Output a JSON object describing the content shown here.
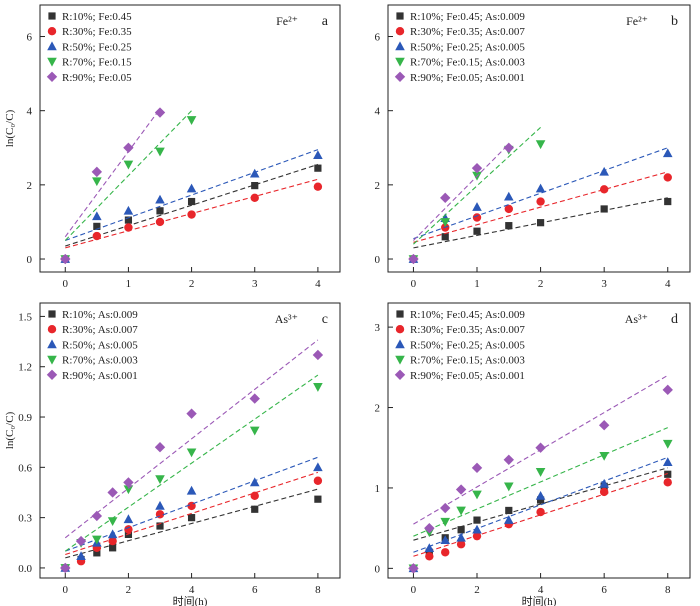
{
  "panels": [
    {
      "panel_label": "a",
      "ion_label": "Fe²⁺",
      "y_label": "ln(C₀/C)",
      "x_label": "",
      "chart_data": {
        "type": "scatter",
        "x_ticks": [
          0,
          1,
          2,
          3,
          4
        ],
        "y_ticks": [
          0,
          2,
          4,
          6
        ],
        "xlim": [
          -0.4,
          4.35
        ],
        "ylim": [
          -0.35,
          6.85
        ],
        "series": [
          {
            "name": "R:10%; Fe:0.45",
            "color": "#333333",
            "marker": "square",
            "x": [
              0,
              0.5,
              1,
              1.5,
              2,
              3,
              4
            ],
            "y": [
              0,
              0.88,
              1.05,
              1.3,
              1.55,
              1.98,
              2.45
            ],
            "fit": {
              "x0": 0,
              "y0": 0.35,
              "x1": 4,
              "y1": 2.55
            }
          },
          {
            "name": "R:30%; Fe:0.35",
            "color": "#e8262b",
            "marker": "circle",
            "x": [
              0,
              0.5,
              1,
              1.5,
              2,
              3,
              4
            ],
            "y": [
              0,
              0.62,
              0.85,
              1.0,
              1.2,
              1.65,
              1.95
            ],
            "fit": {
              "x0": 0,
              "y0": 0.3,
              "x1": 4,
              "y1": 2.15
            }
          },
          {
            "name": "R:50%; Fe:0.25",
            "color": "#2b58b8",
            "marker": "triangle-up",
            "x": [
              0,
              0.5,
              1,
              1.5,
              2,
              3,
              4
            ],
            "y": [
              0,
              1.15,
              1.3,
              1.6,
              1.9,
              2.3,
              2.8
            ],
            "fit": {
              "x0": 0,
              "y0": 0.5,
              "x1": 4,
              "y1": 2.95
            }
          },
          {
            "name": "R:70%; Fe:0.15",
            "color": "#36b54a",
            "marker": "triangle-down",
            "x": [
              0,
              0.5,
              1,
              1.5,
              2
            ],
            "y": [
              0,
              2.1,
              2.55,
              2.9,
              3.75
            ],
            "fit": {
              "x0": 0,
              "y0": 0.5,
              "x1": 2,
              "y1": 4.0
            }
          },
          {
            "name": "R:90%; Fe:0.05",
            "color": "#9b59b6",
            "marker": "diamond",
            "x": [
              0,
              0.5,
              1,
              1.5
            ],
            "y": [
              0,
              2.35,
              3.0,
              3.95
            ],
            "fit": {
              "x0": 0,
              "y0": 0.6,
              "x1": 1.5,
              "y1": 4.05
            }
          }
        ]
      }
    },
    {
      "panel_label": "b",
      "ion_label": "Fe²⁺",
      "y_label": "",
      "x_label": "",
      "chart_data": {
        "type": "scatter",
        "x_ticks": [
          0,
          1,
          2,
          3,
          4
        ],
        "y_ticks": [
          0,
          2,
          4,
          6
        ],
        "xlim": [
          -0.4,
          4.35
        ],
        "ylim": [
          -0.35,
          6.85
        ],
        "series": [
          {
            "name": "R:10%; Fe:0.45; As:0.009",
            "color": "#333333",
            "marker": "square",
            "x": [
              0,
              0.5,
              1,
              1.5,
              2,
              3,
              4
            ],
            "y": [
              0,
              0.6,
              0.75,
              0.9,
              0.98,
              1.35,
              1.55
            ],
            "fit": {
              "x0": 0,
              "y0": 0.3,
              "x1": 4,
              "y1": 1.65
            }
          },
          {
            "name": "R:30%; Fe:0.35; As:0.007",
            "color": "#e8262b",
            "marker": "circle",
            "x": [
              0,
              0.5,
              1,
              1.5,
              2,
              3,
              4
            ],
            "y": [
              0,
              0.85,
              1.12,
              1.35,
              1.55,
              1.88,
              2.2
            ],
            "fit": {
              "x0": 0,
              "y0": 0.45,
              "x1": 4,
              "y1": 2.35
            }
          },
          {
            "name": "R:50%; Fe:0.25; As:0.005",
            "color": "#2b58b8",
            "marker": "triangle-up",
            "x": [
              0,
              0.5,
              1,
              1.5,
              2,
              3,
              4
            ],
            "y": [
              0,
              1.1,
              1.4,
              1.68,
              1.9,
              2.35,
              2.85
            ],
            "fit": {
              "x0": 0,
              "y0": 0.55,
              "x1": 4,
              "y1": 3.0
            }
          },
          {
            "name": "R:70%; Fe:0.15; As:0.003",
            "color": "#36b54a",
            "marker": "triangle-down",
            "x": [
              0,
              0.5,
              1,
              1.5,
              2
            ],
            "y": [
              0,
              1.0,
              2.25,
              2.95,
              3.1
            ],
            "fit": {
              "x0": 0,
              "y0": 0.4,
              "x1": 2,
              "y1": 3.55
            }
          },
          {
            "name": "R:90%; Fe:0.05; As:0.001",
            "color": "#9b59b6",
            "marker": "diamond",
            "x": [
              0,
              0.5,
              1,
              1.5
            ],
            "y": [
              0,
              1.65,
              2.45,
              3.0
            ],
            "fit": {
              "x0": 0,
              "y0": 0.5,
              "x1": 1.5,
              "y1": 3.1
            }
          }
        ]
      }
    },
    {
      "panel_label": "c",
      "ion_label": "As³⁺",
      "y_label": "ln(C₀/C)",
      "x_label": "时间(h)",
      "chart_data": {
        "type": "scatter",
        "x_ticks": [
          0,
          2,
          4,
          6,
          8
        ],
        "y_ticks": [
          "0.0",
          "0.3",
          "0.6",
          "0.9",
          "1.2",
          "1.5"
        ],
        "xlim": [
          -0.8,
          8.7
        ],
        "ylim": [
          -0.06,
          1.58
        ],
        "series": [
          {
            "name": "R:10%; As:0.009",
            "color": "#333333",
            "marker": "square",
            "x": [
              0,
              0.5,
              1,
              1.5,
              2,
              3,
              4,
              6,
              8
            ],
            "y": [
              0,
              0.05,
              0.09,
              0.12,
              0.2,
              0.25,
              0.3,
              0.35,
              0.41
            ],
            "fit": {
              "x0": 0,
              "y0": 0.06,
              "x1": 8,
              "y1": 0.47
            }
          },
          {
            "name": "R:30%; As:0.007",
            "color": "#e8262b",
            "marker": "circle",
            "x": [
              0,
              0.5,
              1,
              1.5,
              2,
              3,
              4,
              6,
              8
            ],
            "y": [
              0,
              0.04,
              0.12,
              0.16,
              0.23,
              0.32,
              0.37,
              0.43,
              0.52
            ],
            "fit": {
              "x0": 0,
              "y0": 0.08,
              "x1": 8,
              "y1": 0.57
            }
          },
          {
            "name": "R:50%; As:0.005",
            "color": "#2b58b8",
            "marker": "triangle-up",
            "x": [
              0,
              0.5,
              1,
              1.5,
              2,
              3,
              4,
              6,
              8
            ],
            "y": [
              0,
              0.07,
              0.15,
              0.2,
              0.29,
              0.37,
              0.46,
              0.51,
              0.6
            ],
            "fit": {
              "x0": 0,
              "y0": 0.1,
              "x1": 8,
              "y1": 0.66
            }
          },
          {
            "name": "R:70%; As:0.003",
            "color": "#36b54a",
            "marker": "triangle-down",
            "x": [
              0,
              0.5,
              1,
              1.5,
              2,
              3,
              4,
              6,
              8
            ],
            "y": [
              0,
              0.15,
              0.17,
              0.28,
              0.47,
              0.53,
              0.69,
              0.82,
              1.08
            ],
            "fit": {
              "x0": 0,
              "y0": 0.1,
              "x1": 8,
              "y1": 1.15
            }
          },
          {
            "name": "R:90%; As:0.001",
            "color": "#9b59b6",
            "marker": "diamond",
            "x": [
              0,
              0.5,
              1,
              1.5,
              2,
              3,
              4,
              6,
              8
            ],
            "y": [
              0,
              0.16,
              0.31,
              0.45,
              0.51,
              0.72,
              0.92,
              1.01,
              1.27
            ],
            "fit": {
              "x0": 0,
              "y0": 0.18,
              "x1": 8,
              "y1": 1.36
            }
          }
        ]
      }
    },
    {
      "panel_label": "d",
      "ion_label": "As³⁺",
      "y_label": "",
      "x_label": "时间(h)",
      "chart_data": {
        "type": "scatter",
        "x_ticks": [
          0,
          2,
          4,
          6,
          8
        ],
        "y_ticks": [
          0,
          1,
          2,
          3
        ],
        "xlim": [
          -0.8,
          8.7
        ],
        "ylim": [
          -0.12,
          3.3
        ],
        "series": [
          {
            "name": "R:10%; Fe:0.45; As:0.009",
            "color": "#333333",
            "marker": "square",
            "x": [
              0,
              0.5,
              1,
              1.5,
              2,
              3,
              4,
              6,
              8
            ],
            "y": [
              0,
              0.2,
              0.38,
              0.48,
              0.6,
              0.72,
              0.85,
              1.02,
              1.17
            ],
            "fit": {
              "x0": 0,
              "y0": 0.35,
              "x1": 8,
              "y1": 1.25
            }
          },
          {
            "name": "R:30%; Fe:0.35; As:0.007",
            "color": "#e8262b",
            "marker": "circle",
            "x": [
              0,
              0.5,
              1,
              1.5,
              2,
              3,
              4,
              6,
              8
            ],
            "y": [
              0,
              0.15,
              0.2,
              0.3,
              0.4,
              0.55,
              0.7,
              0.95,
              1.07
            ],
            "fit": {
              "x0": 0,
              "y0": 0.15,
              "x1": 8,
              "y1": 1.18
            }
          },
          {
            "name": "R:50%; Fe:0.25; As:0.005",
            "color": "#2b58b8",
            "marker": "triangle-up",
            "x": [
              0,
              0.5,
              1,
              1.5,
              2,
              3,
              4,
              6,
              8
            ],
            "y": [
              0,
              0.25,
              0.35,
              0.38,
              0.48,
              0.6,
              0.9,
              1.05,
              1.32
            ],
            "fit": {
              "x0": 0,
              "y0": 0.2,
              "x1": 8,
              "y1": 1.38
            }
          },
          {
            "name": "R:70%; Fe:0.15; As:0.003",
            "color": "#36b54a",
            "marker": "triangle-down",
            "x": [
              0,
              0.5,
              1,
              1.5,
              2,
              3,
              4,
              6,
              8
            ],
            "y": [
              0,
              0.45,
              0.58,
              0.72,
              0.92,
              1.02,
              1.2,
              1.4,
              1.55
            ],
            "fit": {
              "x0": 0,
              "y0": 0.4,
              "x1": 8,
              "y1": 1.75
            }
          },
          {
            "name": "R:90%; Fe:0.05; As:0.001",
            "color": "#9b59b6",
            "marker": "diamond",
            "x": [
              0,
              0.5,
              1,
              1.5,
              2,
              3,
              4,
              6,
              8
            ],
            "y": [
              0,
              0.5,
              0.75,
              0.98,
              1.25,
              1.35,
              1.5,
              1.78,
              2.22
            ],
            "fit": {
              "x0": 0,
              "y0": 0.55,
              "x1": 8,
              "y1": 2.4
            }
          }
        ]
      }
    }
  ]
}
